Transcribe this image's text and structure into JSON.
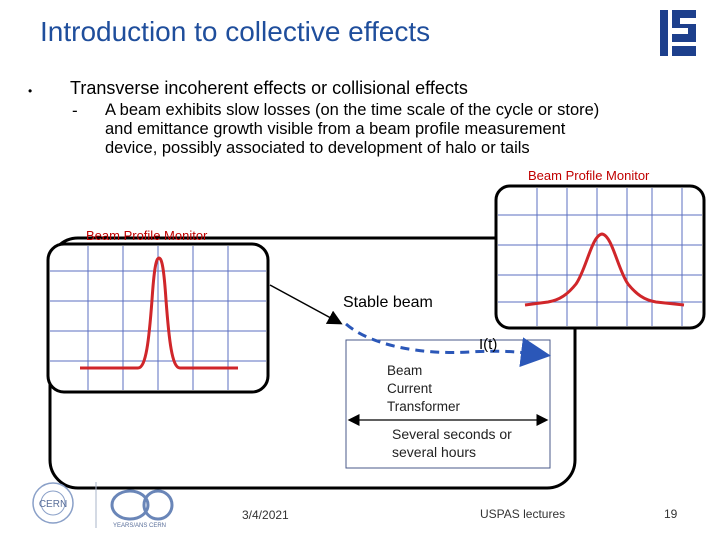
{
  "slide": {
    "title": "Introduction to collective effects",
    "bullet": "Transverse incoherent effects or collisional effects",
    "sub_dash": "-",
    "sub_lines": [
      "A beam exhibits slow losses (on the time scale of the cycle or store)",
      "and emittance growth  visible from a beam profile measurement",
      "device, possibly associated to development of halo or tails"
    ]
  },
  "diagram": {
    "bpm_right_label": "Beam Profile Monitor",
    "bpm_left_label": "Beam Profile Monitor",
    "stable_beam": "Stable beam",
    "current_label": "I(t)",
    "bct_lines": [
      "Beam",
      "Current",
      "Transformer"
    ],
    "duration_lines": [
      "Several seconds or",
      "several hours"
    ],
    "colors": {
      "title": "#1f4e9c",
      "profile": "#d0262a",
      "beam_path": "#2b57b8",
      "grid": "#5b6fc0"
    }
  },
  "logos": {
    "cern": "CERN",
    "anniversary": "YEARS/ANS CERN",
    "uspas": "USPAS logo"
  },
  "footer": {
    "date": "3/4/2021",
    "lectures": "USPAS lectures",
    "page": "19"
  }
}
